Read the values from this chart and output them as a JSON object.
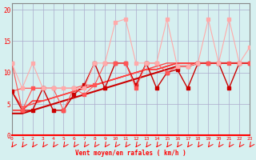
{
  "bg_color": "#d6f0f0",
  "grid_color": "#aaaacc",
  "xlim": [
    0,
    23
  ],
  "ylim": [
    0,
    21
  ],
  "xlabel": "Vent moyen/en rafales ( km/h )",
  "yticks": [
    0,
    5,
    10,
    15,
    20
  ],
  "xticks": [
    0,
    1,
    2,
    3,
    4,
    5,
    6,
    7,
    8,
    9,
    10,
    11,
    12,
    13,
    14,
    15,
    16,
    17,
    18,
    19,
    20,
    21,
    22,
    23
  ],
  "x": [
    0,
    1,
    2,
    3,
    4,
    5,
    6,
    7,
    8,
    9,
    10,
    11,
    12,
    13,
    14,
    15,
    16,
    17,
    18,
    19,
    20,
    21,
    22,
    23
  ],
  "line1_y": [
    7.0,
    4.0,
    4.0,
    7.5,
    4.0,
    4.0,
    6.5,
    8.0,
    11.5,
    7.5,
    11.5,
    11.5,
    8.0,
    11.5,
    7.5,
    10.0,
    10.5,
    7.5,
    11.5,
    11.5,
    11.5,
    7.5,
    11.5,
    11.5
  ],
  "line2_y": [
    11.5,
    4.0,
    7.5,
    7.5,
    7.5,
    4.0,
    7.5,
    6.5,
    8.0,
    11.5,
    11.5,
    11.5,
    7.5,
    11.5,
    11.5,
    10.0,
    11.0,
    11.0,
    11.5,
    11.5,
    11.5,
    11.5,
    11.5,
    11.5
  ],
  "line3_y": [
    11.5,
    7.5,
    11.5,
    7.5,
    7.5,
    7.5,
    7.5,
    7.5,
    11.5,
    11.5,
    18.0,
    18.5,
    11.5,
    11.5,
    11.5,
    18.5,
    11.0,
    11.0,
    11.5,
    18.5,
    11.5,
    18.5,
    11.5,
    14.0
  ],
  "line4_y": [
    7.0,
    7.5,
    7.5,
    7.5,
    7.5,
    7.5,
    7.5,
    8.0,
    8.0,
    8.5,
    9.0,
    9.5,
    10.0,
    10.5,
    10.5,
    11.0,
    11.5,
    11.5,
    11.5,
    11.5,
    11.5,
    11.5,
    11.5,
    11.5
  ],
  "line5_y": [
    4.0,
    4.0,
    5.5,
    5.5,
    6.0,
    6.5,
    7.0,
    7.5,
    8.0,
    8.5,
    9.0,
    9.5,
    10.0,
    10.5,
    10.5,
    11.0,
    11.5,
    11.5,
    11.5,
    11.5,
    11.5,
    11.5,
    11.5,
    11.5
  ],
  "line6_y": [
    3.5,
    3.5,
    4.0,
    4.5,
    5.0,
    5.5,
    6.0,
    6.5,
    7.0,
    7.5,
    8.0,
    8.5,
    9.0,
    9.5,
    10.0,
    10.5,
    11.0,
    11.0,
    11.5,
    11.5,
    11.5,
    11.5,
    11.5,
    11.5
  ],
  "line7_y": [
    7.0,
    4.5,
    5.0,
    5.5,
    6.0,
    6.5,
    7.0,
    7.5,
    8.0,
    8.5,
    9.0,
    9.5,
    10.0,
    10.5,
    11.0,
    11.5,
    11.5,
    11.5,
    11.5,
    11.5,
    11.5,
    11.5,
    11.5,
    11.5
  ]
}
